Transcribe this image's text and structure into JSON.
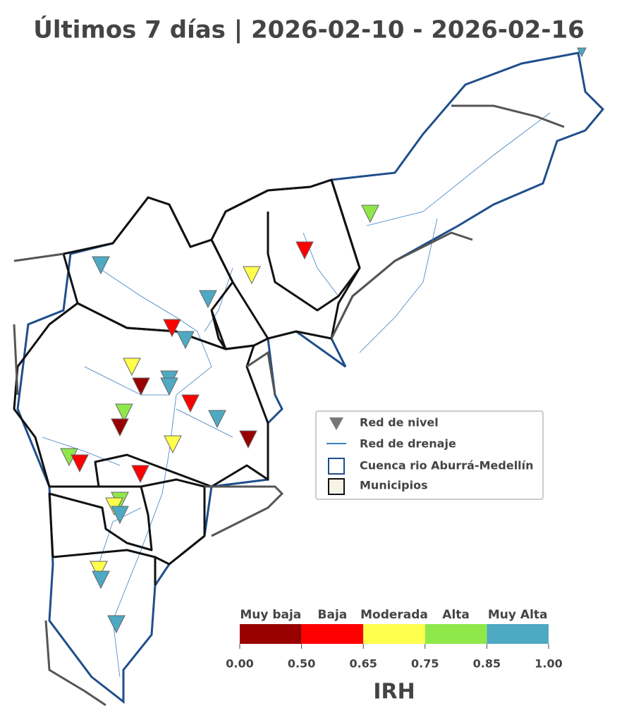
{
  "title": "Últimos 7 días | 2026-02-10 - 2026-02-16",
  "legend": {
    "items": [
      {
        "label": "Red de nivel"
      },
      {
        "label": "Red de drenaje"
      },
      {
        "label": "Cuenca rio Aburrá-Medellín"
      },
      {
        "label": "Municipios"
      }
    ]
  },
  "colorbar": {
    "title": "IRH",
    "classes": [
      {
        "label": "Muy baja",
        "color": "#990000"
      },
      {
        "label": "Baja",
        "color": "#ff0000"
      },
      {
        "label": "Moderada",
        "color": "#ffff4d"
      },
      {
        "label": "Alta",
        "color": "#8fe84a"
      },
      {
        "label": "Muy Alta",
        "color": "#4ea9c3"
      }
    ],
    "ticks": [
      {
        "value": 0,
        "label": "0.00"
      },
      {
        "value": 0.5,
        "label": "0.50"
      },
      {
        "value": 0.65,
        "label": "0.65"
      },
      {
        "value": 0.75,
        "label": "0.75"
      },
      {
        "value": 0.85,
        "label": "0.85"
      },
      {
        "value": 1,
        "label": "1.00"
      }
    ]
  }
}
